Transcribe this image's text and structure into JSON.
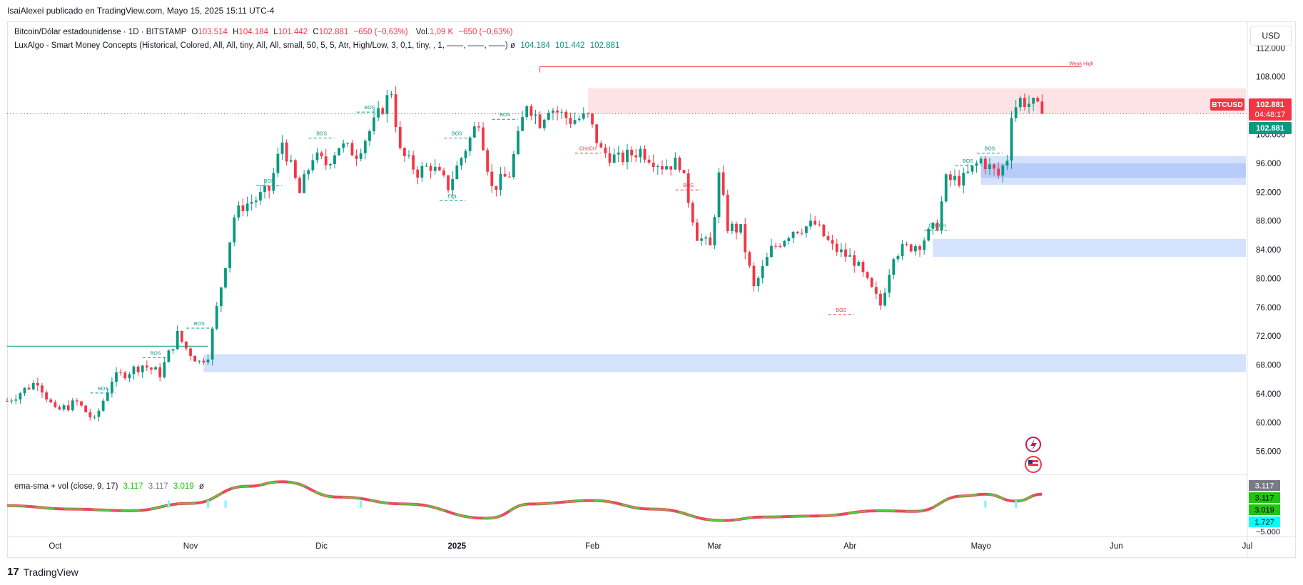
{
  "header": {
    "publisher": "IsaiAlexei publicado en TradingView.com, Mayo 15, 2025 15:11 UTC-4"
  },
  "legend": {
    "symbol": "Bitcoin/Dólar estadounidense · 1D · BITSTAMP",
    "open_label": "O",
    "open": "103.514",
    "high_label": "H",
    "high": "104.184",
    "low_label": "L",
    "low": "101.442",
    "close_label": "C",
    "close": "102.881",
    "change": "−650 (−0,63%)",
    "vol_label": "Vol.",
    "vol": "1,09 K",
    "vol_change": "−650 (−0,63%)",
    "indicator": "LuxAlgo - Smart Money Concepts (Historical, Colored, All, All, tiny, All, All, small, 50, 5, 5, Atr, High/Low, 3, 0,1, tiny, , 1, ——, ——, ——)",
    "indicator_symbol": "ø",
    "ind_v1": "104.184",
    "ind_v2": "101.442",
    "ind_v3": "102.881"
  },
  "oscillator_legend": {
    "name": "ema-sma + vol (close, 9, 17)",
    "v1": "3.117",
    "v2": "3.117",
    "v3": "3.019",
    "symbol": "ø"
  },
  "currency_button": "USD",
  "footer": {
    "brand": "TradingView",
    "logo_mark": "17"
  },
  "colors": {
    "up": "#089981",
    "down": "#f23645",
    "zone_red": "#fde2e4",
    "zone_blue": "#d2e0fd",
    "osc_green": "#4cd137",
    "osc_red": "#e84a5f",
    "vol_cyan": "#7ff0ff"
  },
  "icons": [
    "lightning-icon",
    "flag-icon"
  ],
  "chart_data": [
    {
      "type": "candlestick",
      "title": "Bitcoin/Dólar estadounidense · 1D · BITSTAMP",
      "y_ticks": [
        "112.000",
        "108.000",
        "104.000",
        "100.000",
        "96.000",
        "92.000",
        "88.000",
        "84.000",
        "80.000",
        "76.000",
        "72.000",
        "68.000",
        "64.000",
        "60.000",
        "56.000"
      ],
      "y_tick_values": [
        112000,
        108000,
        104000,
        100000,
        96000,
        92000,
        88000,
        84000,
        80000,
        76000,
        72000,
        68000,
        64000,
        60000,
        56000
      ],
      "x_tick_labels": [
        "Oct",
        "Nov",
        "Dic",
        "2025",
        "Feb",
        "Mar",
        "Abr",
        "Mayo",
        "Jun",
        "Jul"
      ],
      "x_tick_dates": [
        "2024-10-01",
        "2024-11-01",
        "2024-12-01",
        "2025-01-01",
        "2025-02-01",
        "2025-03-01",
        "2025-04-01",
        "2025-05-01",
        "2025-06-01",
        "2025-07-01"
      ],
      "x_range": [
        "2024-09-20",
        "2025-07-01"
      ],
      "ylim": [
        53000,
        115500
      ],
      "last_price": 102881,
      "price_tag": {
        "symbol": "BTCUSD",
        "price": "102.881",
        "countdown": "04:48:17",
        "price2": "102.881"
      },
      "close_path": [
        [
          "2024-09-20",
          63000
        ],
        [
          "2024-09-27",
          65800
        ],
        [
          "2024-10-01",
          61500
        ],
        [
          "2024-10-06",
          62800
        ],
        [
          "2024-10-10",
          60200
        ],
        [
          "2024-10-14",
          66000
        ],
        [
          "2024-10-21",
          68000
        ],
        [
          "2024-10-25",
          66800
        ],
        [
          "2024-10-29",
          72200
        ],
        [
          "2024-10-31",
          70300
        ],
        [
          "2024-11-03",
          68400
        ],
        [
          "2024-11-05",
          69500
        ],
        [
          "2024-11-07",
          75800
        ],
        [
          "2024-11-11",
          88600
        ],
        [
          "2024-11-13",
          90100
        ],
        [
          "2024-11-16",
          91000
        ],
        [
          "2024-11-19",
          92300
        ],
        [
          "2024-11-22",
          99000
        ],
        [
          "2024-11-26",
          91800
        ],
        [
          "2024-11-29",
          97000
        ],
        [
          "2024-12-02",
          95900
        ],
        [
          "2024-12-05",
          98500
        ],
        [
          "2024-12-09",
          97400
        ],
        [
          "2024-12-13",
          101500
        ],
        [
          "2024-12-17",
          106100
        ],
        [
          "2024-12-19",
          97500
        ],
        [
          "2024-12-23",
          94800
        ],
        [
          "2024-12-26",
          95700
        ],
        [
          "2024-12-30",
          92800
        ],
        [
          "2025-01-03",
          98100
        ],
        [
          "2025-01-06",
          102100
        ],
        [
          "2025-01-09",
          92500
        ],
        [
          "2025-01-13",
          94500
        ],
        [
          "2025-01-17",
          104500
        ],
        [
          "2025-01-20",
          101800
        ],
        [
          "2025-01-22",
          103900
        ],
        [
          "2025-01-27",
          102000
        ],
        [
          "2025-01-31",
          102400
        ],
        [
          "2025-02-03",
          97700
        ],
        [
          "2025-02-07",
          96500
        ],
        [
          "2025-02-12",
          97800
        ],
        [
          "2025-02-17",
          95700
        ],
        [
          "2025-02-21",
          96100
        ],
        [
          "2025-02-25",
          86000
        ],
        [
          "2025-02-28",
          84300
        ],
        [
          "2025-03-02",
          94200
        ],
        [
          "2025-03-04",
          87200
        ],
        [
          "2025-03-07",
          86700
        ],
        [
          "2025-03-10",
          78600
        ],
        [
          "2025-03-14",
          84000
        ],
        [
          "2025-03-19",
          86800
        ],
        [
          "2025-03-24",
          87500
        ],
        [
          "2025-03-28",
          84300
        ],
        [
          "2025-04-02",
          82500
        ],
        [
          "2025-04-06",
          78300
        ],
        [
          "2025-04-08",
          76300
        ],
        [
          "2025-04-11",
          83600
        ],
        [
          "2025-04-17",
          84900
        ],
        [
          "2025-04-21",
          87500
        ],
        [
          "2025-04-23",
          93600
        ],
        [
          "2025-04-27",
          93800
        ],
        [
          "2025-05-01",
          96500
        ],
        [
          "2025-05-05",
          94300
        ],
        [
          "2025-05-07",
          96800
        ],
        [
          "2025-05-08",
          103200
        ],
        [
          "2025-05-10",
          104800
        ],
        [
          "2025-05-13",
          104100
        ],
        [
          "2025-05-15",
          102881
        ]
      ],
      "bos_labels": [
        {
          "text": "BOS",
          "date": "2024-10-12",
          "price": 64500,
          "color": "up"
        },
        {
          "text": "BOS",
          "date": "2024-10-24",
          "price": 69400,
          "color": "up"
        },
        {
          "text": "BOS",
          "date": "2024-11-03",
          "price": 73500,
          "color": "up"
        },
        {
          "text": "BOS",
          "date": "2024-11-19",
          "price": 93300,
          "color": "up"
        },
        {
          "text": "BOS",
          "date": "2024-11-31",
          "price": 99900,
          "color": "up"
        },
        {
          "text": "BOS",
          "date": "2024-12-12",
          "price": 103500,
          "color": "up"
        },
        {
          "text": "BOS",
          "date": "2025-01-01",
          "price": 99900,
          "color": "up"
        },
        {
          "text": "BOS",
          "date": "2025-01-12",
          "price": 102500,
          "color": "up"
        },
        {
          "text": "EQL",
          "date": "2024-12-31",
          "price": 91200,
          "color": "up"
        },
        {
          "text": "CHoCH",
          "date": "2025-01-31",
          "price": 97800,
          "color": "down"
        },
        {
          "text": "BOS",
          "date": "2025-02-23",
          "price": 92700,
          "color": "down"
        },
        {
          "text": "BOS",
          "date": "2025-03-30",
          "price": 75400,
          "color": "down"
        },
        {
          "text": "CHoCH",
          "date": "2025-04-21",
          "price": 87100,
          "color": "up"
        },
        {
          "text": "BOS",
          "date": "2025-04-28",
          "price": 96100,
          "color": "up"
        },
        {
          "text": "BOS",
          "date": "2025-05-03",
          "price": 97800,
          "color": "up"
        },
        {
          "text": "Weak High",
          "date": "2025-05-24",
          "price": 109600,
          "color": "down"
        }
      ],
      "zones": [
        {
          "type": "supply",
          "from": "2025-01-31",
          "to": "2025-07-01",
          "low": 102900,
          "high": 106400
        },
        {
          "type": "demand",
          "from": "2025-05-01",
          "to": "2025-07-01",
          "low": 93000,
          "high": 97000
        },
        {
          "type": "demand",
          "from": "2025-04-20",
          "to": "2025-07-01",
          "low": 83000,
          "high": 85500
        },
        {
          "type": "demand",
          "from": "2024-11-04",
          "to": "2025-07-01",
          "low": 67000,
          "high": 69500
        }
      ],
      "weak_high": {
        "from": "2025-01-20",
        "to": "2025-05-24",
        "price": 109400
      }
    },
    {
      "type": "line",
      "title": "ema-sma + vol (close, 9, 17)",
      "y_tick_values": [
        -5000
      ],
      "y_ticks": [
        "−5.000"
      ],
      "value_tags": [
        "3.117",
        "3.117",
        "3.019",
        "1.727"
      ],
      "wave": [
        [
          "2024-09-20",
          -600
        ],
        [
          "2024-10-05",
          -1200
        ],
        [
          "2024-10-18",
          -1500
        ],
        [
          "2024-11-01",
          -200
        ],
        [
          "2024-11-14",
          2800
        ],
        [
          "2024-11-22",
          3600
        ],
        [
          "2024-12-05",
          900
        ],
        [
          "2024-12-20",
          -300
        ],
        [
          "2025-01-08",
          -2800
        ],
        [
          "2025-01-18",
          -300
        ],
        [
          "2025-02-01",
          300
        ],
        [
          "2025-02-15",
          -1200
        ],
        [
          "2025-03-03",
          -3200
        ],
        [
          "2025-03-12",
          -2600
        ],
        [
          "2025-03-24",
          -2400
        ],
        [
          "2025-04-08",
          -1500
        ],
        [
          "2025-04-16",
          -1600
        ],
        [
          "2025-04-27",
          1100
        ],
        [
          "2025-05-02",
          1400
        ],
        [
          "2025-05-09",
          200
        ],
        [
          "2025-05-15",
          1400
        ]
      ]
    }
  ]
}
